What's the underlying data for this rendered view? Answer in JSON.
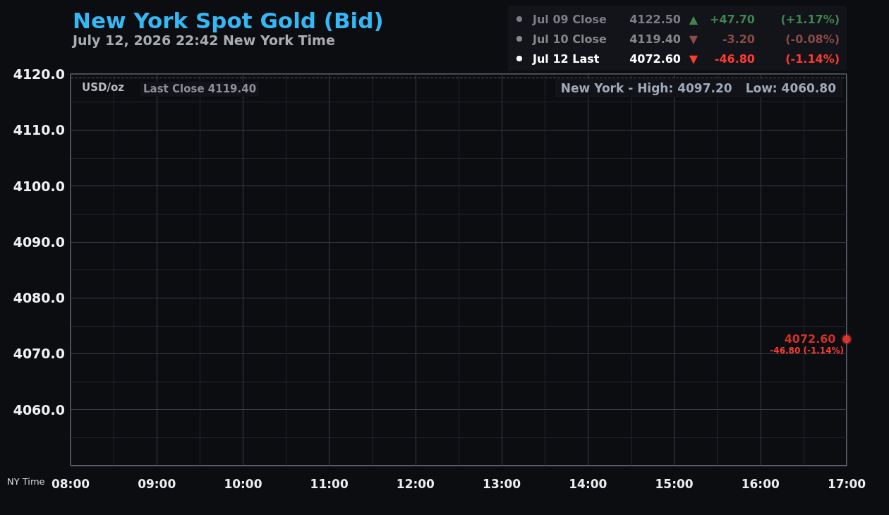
{
  "chart_data": {
    "type": "scatter",
    "title": "New York Spot Gold (Bid)",
    "subtitle": "July 12, 2026 22:42 New York Time",
    "xlabel": "NY Time",
    "ylabel": "USD/oz",
    "x": [
      17
    ],
    "values": [
      4072.6
    ],
    "color": "#ff3b30",
    "marker": "circle",
    "value_labels": [
      "4072.60"
    ],
    "xlim": [
      8,
      17
    ],
    "xticks": [
      {
        "value": 8,
        "label": "08:00"
      },
      {
        "value": 8.5,
        "label": null
      },
      {
        "value": 9,
        "label": "09:00"
      },
      {
        "value": 9.5,
        "label": null
      },
      {
        "value": 10,
        "label": "10:00"
      },
      {
        "value": 10.5,
        "label": null
      },
      {
        "value": 11,
        "label": "11:00"
      },
      {
        "value": 11.5,
        "label": null
      },
      {
        "value": 12,
        "label": "12:00"
      },
      {
        "value": 12.5,
        "label": null
      },
      {
        "value": 13,
        "label": "13:00"
      },
      {
        "value": 13.5,
        "label": null
      },
      {
        "value": 14,
        "label": "14:00"
      },
      {
        "value": 14.5,
        "label": null
      },
      {
        "value": 15,
        "label": "15:00"
      },
      {
        "value": 15.5,
        "label": null
      },
      {
        "value": 16,
        "label": "16:00"
      },
      {
        "value": 16.5,
        "label": null
      },
      {
        "value": 17,
        "label": "17:00"
      }
    ],
    "ylim": [
      4050,
      4120
    ],
    "yticks": [
      {
        "value": 4055,
        "label": null
      },
      {
        "value": 4060,
        "label": "4060.0"
      },
      {
        "value": 4065,
        "label": null
      },
      {
        "value": 4070,
        "label": "4070.0"
      },
      {
        "value": 4075,
        "label": null
      },
      {
        "value": 4080,
        "label": "4080.0"
      },
      {
        "value": 4085,
        "label": null
      },
      {
        "value": 4090,
        "label": "4090.0"
      },
      {
        "value": 4095,
        "label": null
      },
      {
        "value": 4100,
        "label": "4100.0"
      },
      {
        "value": 4105,
        "label": null
      },
      {
        "value": 4110,
        "label": "4110.0"
      },
      {
        "value": 4115,
        "label": null
      },
      {
        "value": 4120,
        "label": "4120.0"
      }
    ],
    "grid": true,
    "ref_lines": [
      {
        "axis": "y",
        "value": 4119.4,
        "label": "Last Close 4119.40",
        "color": "#55585f",
        "line_style": "dashed"
      }
    ],
    "annotations": [
      "New York - High: 4097.20",
      "Low: 4060.80",
      "Jul 09 Close",
      "4122.50",
      "▲",
      "+47.70",
      "(+1.17%)",
      "Jul 10 Close",
      "4119.40",
      "▼",
      "-3.20",
      "(-0.08%)",
      "Jul 12 Last",
      "4072.60",
      "▼",
      "-46.80",
      "(-1.14%)",
      {
        "text": "-46.80 (-1.14%)",
        "x": 17,
        "y": 4072.6
      }
    ]
  }
}
